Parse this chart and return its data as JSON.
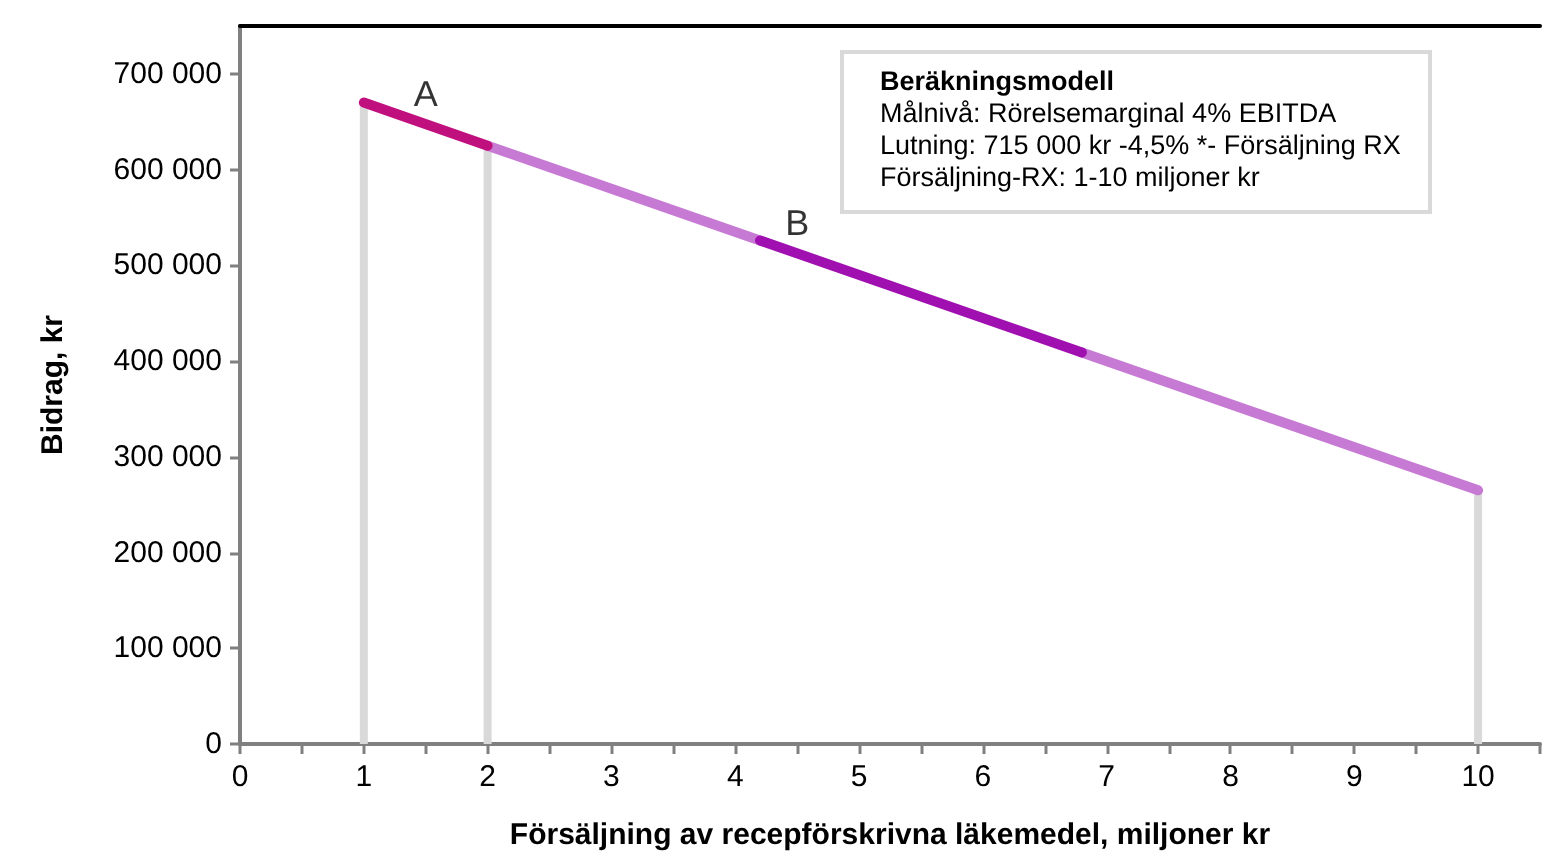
{
  "chart_data": {
    "type": "line",
    "xlabel": "Försäljning av recepförskrivna läkemedel, miljoner kr",
    "ylabel": "Bidrag, kr",
    "xlim": [
      0,
      10.5
    ],
    "xticks": [
      0,
      {
        "value": 0.5,
        "label": null
      },
      1,
      {
        "value": 1.5,
        "label": null
      },
      2,
      {
        "value": 2.5,
        "label": null
      },
      3,
      {
        "value": 3.5,
        "label": null
      },
      4,
      {
        "value": 4.5,
        "label": null
      },
      5,
      {
        "value": 5.5,
        "label": null
      },
      6,
      {
        "value": 6.5,
        "label": null
      },
      7,
      {
        "value": 7.5,
        "label": null
      },
      8,
      {
        "value": 8.5,
        "label": null
      },
      9,
      {
        "value": 9.5,
        "label": null
      },
      10,
      {
        "value": 10.5,
        "label": null
      }
    ],
    "ylim": [
      0,
      750000
    ],
    "yticks": [
      {
        "value": 0,
        "label": "0"
      },
      {
        "value": 100000,
        "label": "100 000"
      },
      {
        "value": 200000,
        "label": "200 000"
      },
      {
        "value": 300000,
        "label": "300 000"
      },
      {
        "value": 400000,
        "label": "400 000"
      },
      {
        "value": 500000,
        "label": "500 000"
      },
      {
        "value": 600000,
        "label": "600 000"
      },
      {
        "value": 700000,
        "label": "700 000"
      }
    ],
    "series": [
      {
        "type": "bar",
        "color": "#d9d9d9",
        "x": [
          1,
          2,
          10
        ],
        "values": [
          670000,
          625000,
          265000
        ]
      },
      {
        "color": "#c77ad3",
        "x": [
          2,
          4.2
        ],
        "values": [
          625000,
          526000
        ]
      },
      {
        "color": "#c77ad3",
        "x": [
          6.8,
          10
        ],
        "values": [
          409000,
          265000
        ]
      },
      {
        "color": "#c0107e",
        "x": [
          1,
          2
        ],
        "values": [
          670000,
          625000
        ]
      },
      {
        "color": "#a010b0",
        "x": [
          4.2,
          6.8
        ],
        "values": [
          526000,
          409000
        ]
      }
    ],
    "annotations": [
      {
        "text": "A",
        "x": 1.5,
        "y": 647500
      },
      {
        "text": "B",
        "x": 4.5,
        "y": 512500
      },
      "Beräkningsmodell",
      "Målnivå: Rörelsemarginal 4% EBITDA",
      "Lutning: 715 000 kr -4,5% *- Försäljning RX",
      "Försäljning-RX: 1-10 miljoner kr"
    ],
    "grid": false,
    "marker": "none",
    "line_style": "solid"
  }
}
